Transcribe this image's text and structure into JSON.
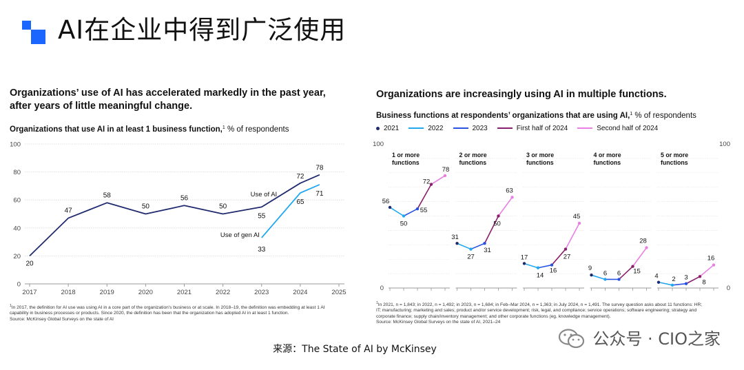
{
  "header": {
    "title": "AI在企业中得到广泛使用"
  },
  "source_line": "来源：The State of AI by McKinsey",
  "watermark": "公众号 · CIO之家",
  "chart_data": [
    {
      "type": "line",
      "title": "Organizations’ use of AI has accelerated markedly in the past year, after years of little meaningful change.",
      "subtitle_bold": "Organizations that use AI in at least 1 business function,",
      "subtitle_sup": "1",
      "subtitle_rest": " % of respondents",
      "xlabel": "",
      "ylabel": "",
      "ylim": [
        0,
        100
      ],
      "yticks": [
        "0",
        "20",
        "40",
        "60",
        "80",
        "100"
      ],
      "xlim": [
        2017,
        2025
      ],
      "xticks": [
        "2017",
        "2018",
        "2019",
        "2020",
        "2021",
        "2022",
        "2023",
        "2024",
        "2025"
      ],
      "grid": true,
      "series": [
        {
          "name": "Use of AI",
          "color": "#1f2a6e",
          "x": [
            2017,
            2018,
            2019,
            2020,
            2021,
            2022,
            2023,
            2024,
            2024.5
          ],
          "y": [
            20,
            47,
            58,
            50,
            56,
            50,
            55,
            72,
            78
          ],
          "labels": [
            "20",
            "47",
            "58",
            "50",
            "56",
            "50",
            "55",
            "72",
            "78"
          ]
        },
        {
          "name": "Use of gen AI",
          "color": "#22a8f0",
          "x": [
            2023,
            2024,
            2024.5
          ],
          "y": [
            33,
            65,
            71
          ],
          "labels": [
            "33",
            "65",
            "71"
          ]
        }
      ],
      "footnote": [
        "In 2017, the definition for AI use was using AI in a core part of the organization’s business or at scale. In 2018–19, the definition was embedding at least 1 AI",
        "capability in business processes or products. Since 2020, the definition has been that the organization has adopted AI in at least 1 function.",
        "Source: McKinsey Global Surveys on the state of AI"
      ],
      "footnote_sup": "1"
    },
    {
      "type": "line",
      "title": "Organizations are increasingly using AI in multiple functions.",
      "subtitle_bold": "Business functions at respondents’ organizations that are using AI,",
      "subtitle_sup": "1",
      "subtitle_rest": " % of respondents",
      "ylim": [
        0,
        100
      ],
      "yticks": [
        "0",
        "100"
      ],
      "legend": [
        {
          "name": "2021",
          "color": "#1f2a6e",
          "style": "dot"
        },
        {
          "name": "2022",
          "color": "#22a8f0",
          "style": "line"
        },
        {
          "name": "2023",
          "color": "#2952e0",
          "style": "line"
        },
        {
          "name": "First half of 2024",
          "color": "#8a1e6b",
          "style": "line"
        },
        {
          "name": "Second half of 2024",
          "color": "#e87fe3",
          "style": "line"
        }
      ],
      "categories": [
        "2021",
        "2022",
        "2023",
        "First half of 2024",
        "Second half of 2024"
      ],
      "panels": [
        {
          "title": [
            "1 or more",
            "functions"
          ],
          "values": [
            56,
            50,
            55,
            72,
            78
          ],
          "labels": [
            "56",
            "50",
            "55",
            "72",
            "78"
          ]
        },
        {
          "title": [
            "2 or more",
            "functions"
          ],
          "values": [
            31,
            27,
            31,
            50,
            63
          ],
          "labels": [
            "31",
            "27",
            "31",
            "50",
            "63"
          ]
        },
        {
          "title": [
            "3 or more",
            "functions"
          ],
          "values": [
            17,
            14,
            16,
            27,
            45
          ],
          "labels": [
            "17",
            "14",
            "16",
            "27",
            "45"
          ]
        },
        {
          "title": [
            "4 or more",
            "functions"
          ],
          "values": [
            9,
            6,
            6,
            15,
            28
          ],
          "labels": [
            "9",
            "6",
            "6",
            "15",
            "28"
          ]
        },
        {
          "title": [
            "5 or more",
            "functions"
          ],
          "values": [
            4,
            2,
            3,
            8,
            16
          ],
          "labels": [
            "4",
            "2",
            "3",
            "8",
            "16"
          ]
        }
      ],
      "footnote": [
        "In 2021, n = 1,843; in 2022, n = 1,492; in 2023, n = 1,684; in Feb–Mar 2024, n = 1,363; in July 2024, n = 1,491. The survey question asks about 11 functions: HR;",
        "IT; manufacturing; marketing and sales; product and/or service development; risk, legal, and compliance; service operations; software engineering; strategy and",
        "corporate finance; supply chain/inventory management; and other corporate functions (eg, knowledge management).",
        "Source: McKinsey Global Surveys on the state of AI, 2021–24"
      ],
      "footnote_sup": "1"
    }
  ]
}
